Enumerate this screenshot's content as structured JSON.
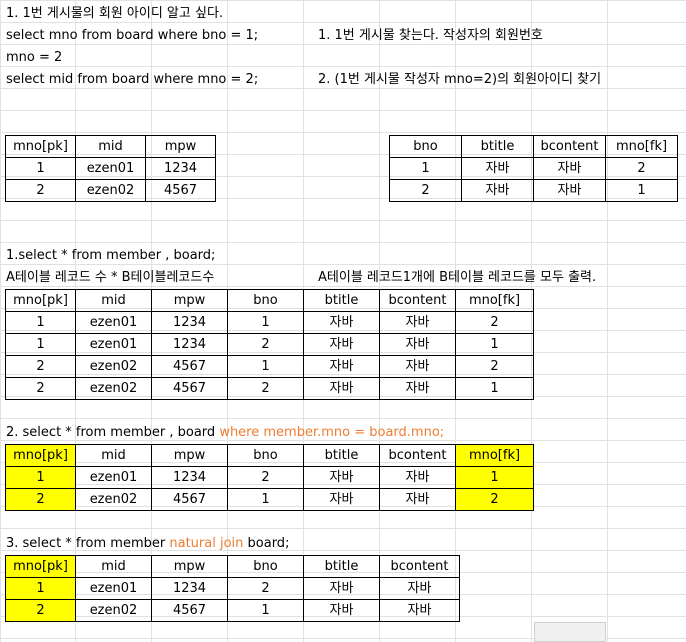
{
  "notes": {
    "line1": "1. 1번 게시물의 회원 아이디 알고 싶다.",
    "line2_left": "select mno from board where bno = 1;",
    "line2_right": "1. 1번 게시물 찾는다. 작성자의 회원번호",
    "line3": "mno = 2",
    "line4_left": "select mid from board where mno = 2;",
    "line4_right": "2. (1번 게시물 작성자 mno=2)의 회원아이디 찾기"
  },
  "member_table": {
    "headers": [
      "mno[pk]",
      "mid",
      "mpw"
    ],
    "rows": [
      [
        "1",
        "ezen01",
        "1234"
      ],
      [
        "2",
        "ezen02",
        "4567"
      ]
    ]
  },
  "board_table": {
    "headers": [
      "bno",
      "btitle",
      "bcontent",
      "mno[fk]"
    ],
    "rows": [
      [
        "1",
        "자바",
        "자바",
        "2"
      ],
      [
        "2",
        "자바",
        "자바",
        "1"
      ]
    ]
  },
  "section1": {
    "title": "1.select * from member , board;",
    "desc_left": "A테이블 레코드 수  *  B테이블레코드수",
    "desc_right": "A테이블 레코드1개에 B테이블 레코드를 모두 출력.",
    "headers": [
      "mno[pk]",
      "mid",
      "mpw",
      "bno",
      "btitle",
      "bcontent",
      "mno[fk]"
    ],
    "rows": [
      [
        "1",
        "ezen01",
        "1234",
        "1",
        "자바",
        "자바",
        "2"
      ],
      [
        "1",
        "ezen01",
        "1234",
        "2",
        "자바",
        "자바",
        "1"
      ],
      [
        "2",
        "ezen02",
        "4567",
        "1",
        "자바",
        "자바",
        "2"
      ],
      [
        "2",
        "ezen02",
        "4567",
        "2",
        "자바",
        "자바",
        "1"
      ]
    ]
  },
  "section2": {
    "title_plain": "2. select * from member , board ",
    "title_highlight": "where member.mno = board.mno;",
    "headers": [
      "mno[pk]",
      "mid",
      "mpw",
      "bno",
      "btitle",
      "bcontent",
      "mno[fk]"
    ],
    "rows": [
      [
        "1",
        "ezen01",
        "1234",
        "2",
        "자바",
        "자바",
        "1"
      ],
      [
        "2",
        "ezen02",
        "4567",
        "1",
        "자바",
        "자바",
        "2"
      ]
    ]
  },
  "section3": {
    "title_plain": "3. select * from member ",
    "title_highlight": "natural join",
    "title_end": " board;",
    "headers": [
      "mno[pk]",
      "mid",
      "mpw",
      "bno",
      "btitle",
      "bcontent"
    ],
    "rows": [
      [
        "1",
        "ezen01",
        "1234",
        "2",
        "자바",
        "자바"
      ],
      [
        "2",
        "ezen02",
        "4567",
        "1",
        "자바",
        "자바"
      ]
    ]
  },
  "colors": {
    "highlight": "#ffff00",
    "orange_text": "#ed7d31"
  }
}
